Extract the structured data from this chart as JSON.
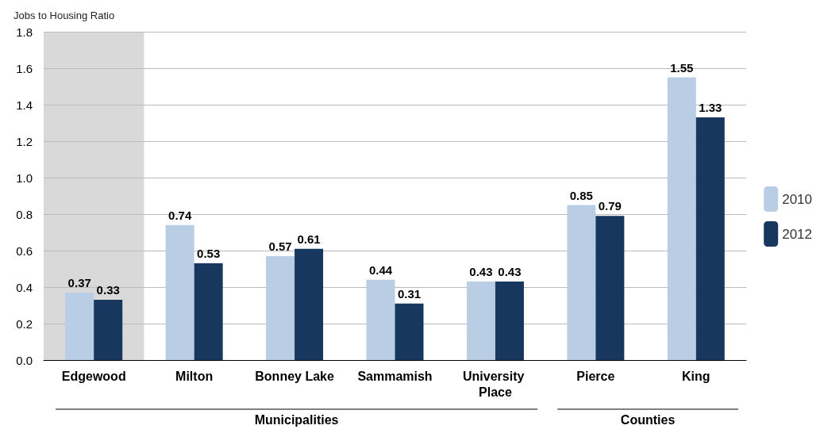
{
  "chart_data": {
    "type": "bar",
    "ylabel": "Jobs to Housing Ratio",
    "categories": [
      "Edgewood",
      "Milton",
      "Bonney Lake",
      "Sammamish",
      "University Place",
      "Pierce",
      "King"
    ],
    "series": [
      {
        "name": "2010",
        "color": "#b9cde5",
        "values": [
          0.37,
          0.74,
          0.57,
          0.44,
          0.43,
          0.85,
          1.55
        ]
      },
      {
        "name": "2012",
        "color": "#17375e",
        "values": [
          0.33,
          0.53,
          0.61,
          0.31,
          0.43,
          0.79,
          1.33
        ]
      }
    ],
    "ylim": [
      0,
      1.8
    ],
    "yticks": [
      {
        "value": 0,
        "label": "0.0"
      },
      {
        "value": 0.2,
        "label": "0.2"
      },
      {
        "value": 0.4,
        "label": "0.4"
      },
      {
        "value": 0.6,
        "label": "0.6"
      },
      {
        "value": 0.8,
        "label": "0.8"
      },
      {
        "value": 1,
        "label": "1.0"
      },
      {
        "value": 1.2,
        "label": "1.2"
      },
      {
        "value": 1.4,
        "label": "1.4"
      },
      {
        "value": 1.6,
        "label": "1.6"
      },
      {
        "value": 1.8,
        "label": "1.8"
      }
    ],
    "grid": "y",
    "legend": "right",
    "data_labels": true,
    "bands": [
      {
        "axis": "x",
        "from": "Edgewood",
        "to": "Edgewood",
        "color": "#d9d9d9"
      }
    ],
    "annotations": [
      "Municipalities",
      "Counties"
    ]
  }
}
